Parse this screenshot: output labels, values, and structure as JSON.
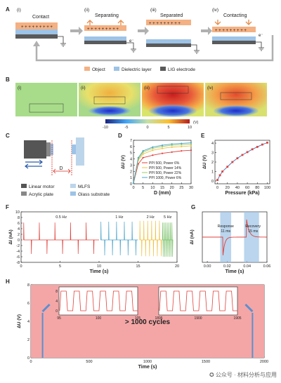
{
  "panels": {
    "A": "A",
    "B": "B",
    "C": "C",
    "D": "D",
    "E": "E",
    "F": "F",
    "G": "G",
    "H": "H"
  },
  "panel_a": {
    "steps": [
      {
        "num": "(i)",
        "label": "Contact"
      },
      {
        "num": "(ii)",
        "label": "Separating"
      },
      {
        "num": "(iii)",
        "label": "Separated"
      },
      {
        "num": "(iv)",
        "label": "Contacting"
      }
    ],
    "electron": "e⁻",
    "legend": [
      "Object",
      "Dielectric layer",
      "LIG electrode"
    ],
    "colors": {
      "object": "#f4b183",
      "dielectric": "#9dc3e6",
      "lig": "#5a5a5a",
      "ground": "#333333"
    }
  },
  "panel_b": {
    "tiles": [
      "(i)",
      "(ii)",
      "(iii)",
      "(iv)"
    ],
    "colorbar_ticks": [
      "-10",
      "-5",
      "0",
      "5",
      "10"
    ],
    "colorbar_unit": "(V)"
  },
  "panel_c": {
    "distance_label": "D",
    "legend": [
      "Linear motor",
      "MLFS",
      "Acrylic plate",
      "Glass substrate"
    ]
  },
  "watermark": "公众号 · 材料分析与应用",
  "chart_data": [
    {
      "panel": "D",
      "type": "line",
      "xlabel": "D (mm)",
      "ylabel": "ΔU (V)",
      "xlim": [
        0,
        30
      ],
      "ylim": [
        0,
        7
      ],
      "xticks": [
        0,
        5,
        10,
        15,
        20,
        25,
        30
      ],
      "yticks": [
        0,
        1,
        2,
        3,
        4,
        5,
        6,
        7
      ],
      "x": [
        0,
        2.5,
        5,
        10,
        15,
        20,
        25,
        30
      ],
      "series": [
        {
          "name": "PPI 500, Power 6%",
          "color": "#e0403a",
          "values": [
            0.1,
            3.2,
            4.2,
            4.6,
            4.9,
            5.1,
            5.3,
            5.4
          ]
        },
        {
          "name": "PPI 500, Power 14%",
          "color": "#f0c040",
          "values": [
            0.1,
            3.8,
            4.8,
            5.4,
            5.7,
            5.9,
            6.0,
            6.1
          ]
        },
        {
          "name": "PPI 500, Power 22%",
          "color": "#9ccc65",
          "values": [
            0.1,
            4.0,
            5.1,
            5.7,
            6.0,
            6.2,
            6.3,
            6.4
          ]
        },
        {
          "name": "PPI 1000, Power 6%",
          "color": "#4aa3c9",
          "values": [
            0.1,
            4.2,
            5.3,
            5.9,
            6.2,
            6.4,
            6.5,
            6.6
          ]
        }
      ]
    },
    {
      "panel": "E",
      "type": "line",
      "xlabel": "Pressure (kPa)",
      "ylabel": "ΔU (V)",
      "xlim": [
        -5,
        105
      ],
      "ylim": [
        -0.3,
        4.3
      ],
      "xticks": [
        0,
        20,
        40,
        60,
        80,
        100
      ],
      "yticks": [
        0,
        1,
        2,
        3,
        4
      ],
      "x": [
        0,
        5,
        10,
        20,
        30,
        40,
        50,
        60,
        70,
        80,
        90,
        100
      ],
      "values": [
        0.1,
        0.6,
        1.0,
        1.5,
        2.0,
        2.4,
        2.75,
        3.05,
        3.35,
        3.6,
        3.85,
        4.05
      ],
      "color": "#4a6fb5"
    },
    {
      "panel": "F",
      "type": "line",
      "xlabel": "Time (s)",
      "ylabel": "ΔI (nA)",
      "xlim": [
        0,
        20
      ],
      "ylim": [
        -8,
        10
      ],
      "xticks": [
        0,
        5,
        10,
        15,
        20
      ],
      "yticks": [
        -8,
        -6,
        -4,
        -2,
        0,
        2,
        4,
        6,
        8,
        10
      ],
      "series": [
        {
          "name": "0.5 Hz",
          "color": "#e0403a",
          "x0": 0.3,
          "x1": 10,
          "freq": 0.5,
          "peak": 6.2,
          "trough": -5.0
        },
        {
          "name": "1 Hz",
          "color": "#4aa3c9",
          "x0": 10.2,
          "x1": 15,
          "freq": 1,
          "peak": 6.5,
          "trough": -5.5
        },
        {
          "name": "2 Hz",
          "color": "#f0c040",
          "x0": 15.2,
          "x1": 18,
          "freq": 2,
          "peak": 6.8,
          "trough": -5.8
        },
        {
          "name": "5 Hz",
          "color": "#7cc26b",
          "x0": 18.1,
          "x1": 19.5,
          "freq": 5,
          "peak": 6.2,
          "trough": -6.0
        }
      ]
    },
    {
      "panel": "G",
      "type": "line",
      "xlabel": "Time (s)",
      "ylabel": "ΔI (nA)",
      "xlim": [
        -0.005,
        0.06
      ],
      "ylim": [
        -10,
        10
      ],
      "xticks": [
        0.0,
        0.02,
        0.04,
        0.06
      ],
      "xtick_labels": [
        "0.00",
        "0.02",
        "0.04",
        "0.06"
      ],
      "annotations": [
        {
          "text": "Response",
          "time": "11 ms",
          "x": 0.0185
        },
        {
          "text": "Recovery",
          "time": "15 ms",
          "x": 0.046
        }
      ],
      "bands": [
        [
          0.013,
          0.024
        ],
        [
          0.037,
          0.052
        ]
      ],
      "color": "#e0403a"
    },
    {
      "panel": "H",
      "type": "area",
      "xlabel": "Time (s)",
      "ylabel": "ΔU (V)",
      "xlim": [
        0,
        2000
      ],
      "ylim": [
        0,
        8
      ],
      "xticks": [
        0,
        500,
        1000,
        1500,
        2000
      ],
      "yticks": [
        0,
        2,
        4,
        6,
        8
      ],
      "fill_value": 8,
      "fill_color": "#f4a6a6",
      "label": "> 1000 cycles",
      "insets": [
        {
          "xticks": [
            "95",
            "100",
            "105"
          ],
          "yticks": [
            "0",
            "4",
            "8"
          ]
        },
        {
          "xticks": [
            "1895",
            "1900",
            "1905"
          ],
          "yticks": []
        }
      ]
    }
  ]
}
